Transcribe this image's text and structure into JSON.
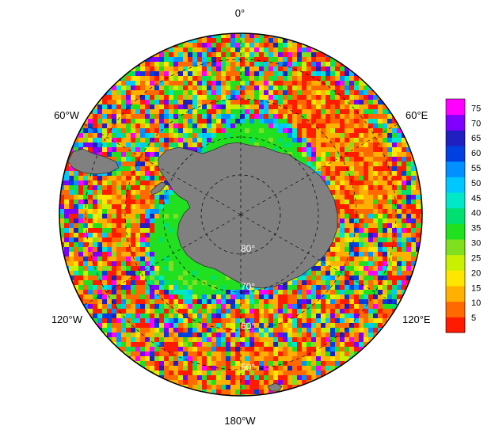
{
  "map": {
    "projection": "south polar stereographic",
    "graticule_style": "dashed",
    "land_color": "#808080",
    "ocean_fill": "sea-ice concentration-like random field",
    "longitude_labels": [
      {
        "key": "lon_0",
        "text": "0°"
      },
      {
        "key": "lon_60e",
        "text": "60°E"
      },
      {
        "key": "lon_120e",
        "text": "120°E"
      },
      {
        "key": "lon_180",
        "text": "180°W"
      },
      {
        "key": "lon_120w",
        "text": "120°W"
      },
      {
        "key": "lon_60w",
        "text": "60°W"
      }
    ],
    "latitude_labels": [
      {
        "key": "lat_80",
        "text": "80°"
      },
      {
        "key": "lat_70",
        "text": "70°"
      },
      {
        "key": "lat_60",
        "text": "60°"
      },
      {
        "key": "lat_50",
        "text": "50°"
      }
    ]
  },
  "colorbar": {
    "ticks": [
      "75",
      "70",
      "65",
      "60",
      "55",
      "50",
      "45",
      "40",
      "35",
      "30",
      "25",
      "20",
      "15",
      "10",
      "5"
    ],
    "min": 0,
    "max": 78,
    "colors": [
      "#ff1a00",
      "#ff6a00",
      "#ffb000",
      "#ffe600",
      "#c8f000",
      "#80e020",
      "#20e020",
      "#00e070",
      "#00e8c8",
      "#00c8ff",
      "#0090ff",
      "#0040e0",
      "#2020c0",
      "#8000ff",
      "#ff00ff"
    ]
  }
}
